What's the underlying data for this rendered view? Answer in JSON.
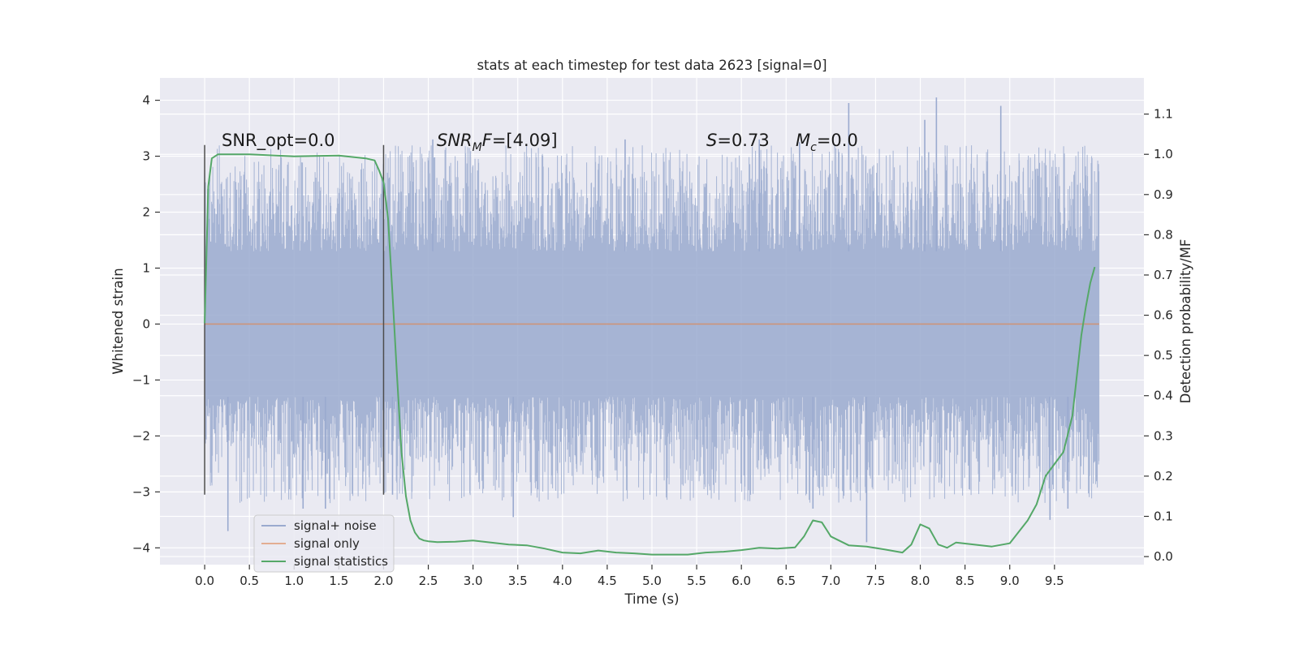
{
  "chart_data": {
    "type": "line",
    "title": "stats at each timestep for test data 2623 [signal=0]",
    "xlabel": "Time (s)",
    "ylabel": "Whitened strain",
    "y2label": "Detection probability/MF",
    "xlim": [
      -0.5,
      10.5
    ],
    "ylim": [
      -4.3,
      4.4
    ],
    "y2lim": [
      -0.02,
      1.19
    ],
    "grid": true,
    "legend_placement": "lower-left",
    "x_ticks": [
      "0.0",
      "0.5",
      "1.0",
      "1.5",
      "2.0",
      "2.5",
      "3.0",
      "3.5",
      "4.0",
      "4.5",
      "5.0",
      "5.5",
      "6.0",
      "6.5",
      "7.0",
      "7.5",
      "8.0",
      "8.5",
      "9.0",
      "9.5"
    ],
    "y_ticks": [
      "4",
      "3",
      "2",
      "1",
      "0",
      "−1",
      "−2",
      "−3",
      "−4"
    ],
    "y2_ticks": [
      "1.1",
      "1.0",
      "0.9",
      "0.8",
      "0.7",
      "0.6",
      "0.5",
      "0.4",
      "0.3",
      "0.2",
      "0.1",
      "0.0"
    ],
    "annotations": {
      "snr_opt": "SNR_opt=0.0",
      "snr_mf_prefix": "SNR",
      "snr_mf_sub": "M",
      "snr_mf_mid": "F",
      "snr_mf_value": "=[4.09]",
      "s_var": "S",
      "s_value": "=0.73",
      "mc_var": "M",
      "mc_sub": "c",
      "mc_value": "=0.0"
    },
    "vertical_markers": [
      {
        "x": 0.0,
        "y_range": [
          -3.05,
          3.2
        ]
      },
      {
        "x": 2.0,
        "y_range": [
          -3.05,
          3.2
        ]
      }
    ],
    "noise_band": {
      "x_range": [
        0.0,
        10.0
      ],
      "typical_range": [
        -1.3,
        1.3
      ],
      "extreme_range": [
        -3.7,
        4.05
      ]
    },
    "series": [
      {
        "name": "signal+ noise",
        "color": "#9aaacf",
        "axis": "left",
        "peaks": [
          {
            "x": 0.26,
            "y": -3.7
          },
          {
            "x": 1.1,
            "y": -3.3
          },
          {
            "x": 1.35,
            "y": -3.3
          },
          {
            "x": 2.1,
            "y": -3.05
          },
          {
            "x": 2.55,
            "y": 3.3
          },
          {
            "x": 3.45,
            "y": -3.45
          },
          {
            "x": 4.7,
            "y": 3.3
          },
          {
            "x": 6.2,
            "y": 3.3
          },
          {
            "x": 6.65,
            "y": 3.25
          },
          {
            "x": 6.8,
            "y": -3.3
          },
          {
            "x": 7.2,
            "y": 3.95
          },
          {
            "x": 7.4,
            "y": -3.9
          },
          {
            "x": 8.05,
            "y": 3.65
          },
          {
            "x": 8.18,
            "y": 4.05
          },
          {
            "x": 8.9,
            "y": 3.9
          },
          {
            "x": 9.45,
            "y": -3.5
          },
          {
            "x": 9.65,
            "y": -3.3
          }
        ]
      },
      {
        "name": "signal only",
        "color": "#dd8452",
        "axis": "left",
        "x": [
          0.0,
          10.0
        ],
        "y": [
          0.0,
          0.0
        ]
      },
      {
        "name": "signal statistics",
        "color": "#55a868",
        "axis": "right",
        "x": [
          0.0,
          0.04,
          0.08,
          0.15,
          0.25,
          0.5,
          1.0,
          1.5,
          1.8,
          1.9,
          1.95,
          2.0,
          2.05,
          2.1,
          2.15,
          2.2,
          2.25,
          2.3,
          2.35,
          2.4,
          2.45,
          2.5,
          2.6,
          2.8,
          3.0,
          3.2,
          3.4,
          3.6,
          3.8,
          4.0,
          4.2,
          4.4,
          4.6,
          4.8,
          5.0,
          5.2,
          5.4,
          5.6,
          5.8,
          6.0,
          6.2,
          6.4,
          6.6,
          6.7,
          6.8,
          6.9,
          7.0,
          7.2,
          7.4,
          7.6,
          7.8,
          7.9,
          8.0,
          8.1,
          8.2,
          8.3,
          8.4,
          8.6,
          8.8,
          9.0,
          9.2,
          9.3,
          9.4,
          9.5,
          9.6,
          9.7,
          9.8,
          9.85,
          9.9,
          9.95
        ],
        "y": [
          0.58,
          0.92,
          0.99,
          1.0,
          1.0,
          1.0,
          0.995,
          0.997,
          0.99,
          0.985,
          0.96,
          0.93,
          0.84,
          0.65,
          0.45,
          0.26,
          0.15,
          0.09,
          0.06,
          0.045,
          0.04,
          0.038,
          0.036,
          0.037,
          0.04,
          0.035,
          0.03,
          0.028,
          0.02,
          0.01,
          0.008,
          0.015,
          0.01,
          0.008,
          0.005,
          0.005,
          0.005,
          0.01,
          0.012,
          0.016,
          0.022,
          0.02,
          0.023,
          0.05,
          0.09,
          0.085,
          0.05,
          0.028,
          0.025,
          0.018,
          0.01,
          0.03,
          0.08,
          0.07,
          0.03,
          0.022,
          0.035,
          0.03,
          0.025,
          0.033,
          0.09,
          0.13,
          0.2,
          0.23,
          0.26,
          0.35,
          0.55,
          0.62,
          0.68,
          0.72
        ]
      }
    ]
  }
}
